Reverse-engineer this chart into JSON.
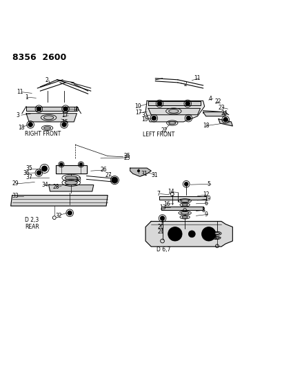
{
  "title": "8356  2600",
  "background_color": "#ffffff",
  "line_color": "#000000",
  "text_color": "#000000",
  "fig_width": 4.1,
  "fig_height": 5.33,
  "dpi": 100,
  "labels": {
    "right_front": "RIGHT FRONT",
    "left_front": "LEFT FRONT",
    "rear": "REAR",
    "d23": "D 2,3",
    "d67": "D 6,7"
  }
}
